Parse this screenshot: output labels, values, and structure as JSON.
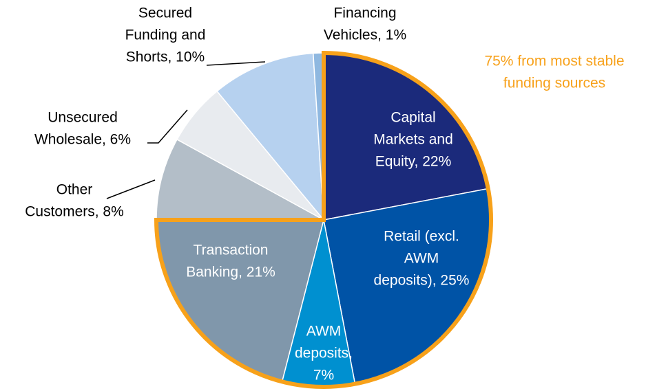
{
  "chart_data": {
    "type": "pie",
    "labels": [
      [
        "Capital",
        "Markets and",
        "Equity, 22%"
      ],
      [
        "Retail (excl.",
        "AWM",
        "deposits), 25%"
      ],
      [
        "AWM",
        "deposits,",
        "7%"
      ],
      [
        "Transaction",
        "Banking, 21%"
      ],
      [
        "Other",
        "Customers, 8%"
      ],
      [
        "Unsecured",
        "Wholesale, 6%"
      ],
      [
        "Secured",
        "Funding and",
        "Shorts, 10%"
      ],
      [
        "Financing",
        "Vehicles, 1%"
      ]
    ],
    "values": [
      22,
      25,
      7,
      21,
      8,
      6,
      10,
      1
    ],
    "colors": [
      "#1b2a7b",
      "#0053a6",
      "#0090d0",
      "#8097ab",
      "#b3bec8",
      "#e8ebef",
      "#b6d1ef",
      "#8fb8e0"
    ],
    "annotation": {
      "lines": [
        "75% from most stable",
        "funding sources"
      ],
      "value": 75,
      "color": "#f7a11a"
    }
  }
}
